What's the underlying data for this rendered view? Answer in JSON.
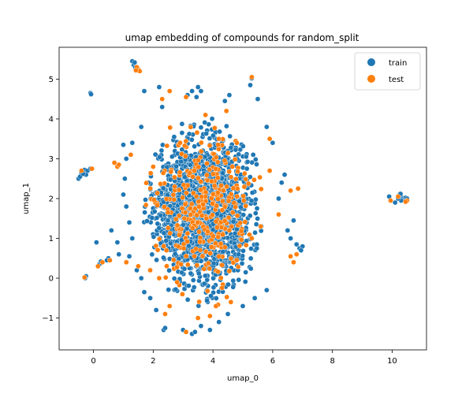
{
  "chart_data": {
    "type": "scatter",
    "title": "umap embedding of compounds for random_split",
    "xlabel": "umap_0",
    "ylabel": "umap_1",
    "xlim": [
      -1.15,
      11.15
    ],
    "ylim": [
      -1.8,
      5.8
    ],
    "xticks": [
      0,
      2,
      4,
      6,
      8,
      10
    ],
    "yticks": [
      -1,
      0,
      1,
      2,
      3,
      4,
      5
    ],
    "grid": false,
    "legend": {
      "placement": "top-right",
      "title": ""
    },
    "series": [
      {
        "name": "train",
        "color": "#1f77b4",
        "points": [
          [
            1.3,
            5.45
          ],
          [
            1.35,
            5.35
          ],
          [
            1.4,
            5.3
          ],
          [
            1.45,
            5.25
          ],
          [
            1.38,
            5.42
          ],
          [
            -0.1,
            4.65
          ],
          [
            -0.08,
            4.62
          ],
          [
            -0.5,
            2.5
          ],
          [
            -0.45,
            2.55
          ],
          [
            -0.4,
            2.65
          ],
          [
            -0.3,
            2.72
          ],
          [
            -0.2,
            2.7
          ],
          [
            -0.1,
            2.75
          ],
          [
            -0.25,
            2.6
          ],
          [
            -0.35,
            2.62
          ],
          [
            -0.25,
            0.05
          ],
          [
            -0.28,
            0.0
          ],
          [
            0.1,
            0.9
          ],
          [
            0.2,
            0.35
          ],
          [
            0.25,
            0.42
          ],
          [
            0.5,
            0.5
          ],
          [
            0.45,
            0.45
          ],
          [
            9.9,
            2.05
          ],
          [
            10.1,
            1.9
          ],
          [
            10.25,
            2.1
          ],
          [
            10.3,
            2.05
          ],
          [
            10.35,
            2.0
          ],
          [
            10.4,
            1.98
          ],
          [
            10.45,
            2.02
          ],
          [
            10.3,
            1.95
          ],
          [
            10.2,
            2.0
          ],
          [
            10.5,
            2.0
          ],
          [
            10.28,
            2.12
          ],
          [
            5.3,
            5.02
          ],
          [
            5.25,
            4.85
          ],
          [
            4.55,
            4.6
          ],
          [
            4.4,
            4.45
          ],
          [
            2.2,
            4.8
          ],
          [
            3.15,
            4.6
          ],
          [
            3.3,
            4.7
          ],
          [
            3.5,
            4.8
          ],
          [
            3.6,
            4.7
          ],
          [
            3.45,
            4.55
          ],
          [
            1.7,
            4.7
          ],
          [
            2.3,
            4.3
          ],
          [
            5.5,
            4.5
          ],
          [
            6.9,
            0.75
          ],
          [
            7.0,
            0.8
          ],
          [
            6.95,
            0.7
          ],
          [
            6.8,
            0.85
          ],
          [
            6.6,
            1.0
          ],
          [
            6.5,
            1.2
          ],
          [
            6.7,
            1.45
          ],
          [
            6.2,
            2.0
          ],
          [
            6.3,
            2.4
          ],
          [
            6.4,
            2.6
          ],
          [
            6.0,
            3.4
          ],
          [
            5.8,
            3.8
          ],
          [
            2.35,
            -1.3
          ],
          [
            2.4,
            -1.25
          ],
          [
            3.0,
            -1.3
          ],
          [
            3.3,
            -1.4
          ],
          [
            3.4,
            -1.35
          ],
          [
            3.6,
            -1.2
          ],
          [
            3.9,
            -1.3
          ],
          [
            4.2,
            -1.1
          ],
          [
            4.5,
            -0.9
          ],
          [
            5.0,
            -0.7
          ],
          [
            5.4,
            -0.5
          ],
          [
            5.8,
            -0.3
          ],
          [
            1.3,
            1.0
          ],
          [
            1.2,
            1.4
          ],
          [
            1.1,
            1.8
          ],
          [
            1.0,
            2.1
          ],
          [
            1.05,
            2.5
          ],
          [
            1.1,
            3.0
          ],
          [
            1.3,
            3.4
          ],
          [
            1.0,
            3.35
          ],
          [
            1.6,
            3.8
          ],
          [
            1.45,
            0.2
          ],
          [
            1.6,
            0.0
          ],
          [
            1.7,
            -0.35
          ],
          [
            1.9,
            -0.5
          ],
          [
            2.1,
            -0.8
          ],
          [
            0.6,
            1.2
          ],
          [
            0.8,
            0.9
          ],
          [
            0.85,
            0.6
          ],
          [
            1.2,
            0.55
          ]
        ],
        "cluster": {
          "center": [
            3.7,
            1.7
          ],
          "spread": [
            1.35,
            1.45
          ],
          "count": 1700
        }
      },
      {
        "name": "test",
        "color": "#ff7f0e",
        "points": [
          [
            1.5,
            5.25
          ],
          [
            1.55,
            5.2
          ],
          [
            1.45,
            5.3
          ],
          [
            1.42,
            5.22
          ],
          [
            -0.4,
            2.7
          ],
          [
            -0.05,
            2.75
          ],
          [
            -0.3,
            0.02
          ],
          [
            0.15,
            0.3
          ],
          [
            0.3,
            0.4
          ],
          [
            0.55,
            0.45
          ],
          [
            9.95,
            1.95
          ],
          [
            10.2,
            2.05
          ],
          [
            10.5,
            1.95
          ],
          [
            10.45,
            1.92
          ],
          [
            5.3,
            5.05
          ],
          [
            2.3,
            4.5
          ],
          [
            2.55,
            4.7
          ],
          [
            3.1,
            4.55
          ],
          [
            3.75,
            4.1
          ],
          [
            4.45,
            4.2
          ],
          [
            5.9,
            3.5
          ],
          [
            0.7,
            2.9
          ],
          [
            0.8,
            2.8
          ],
          [
            0.85,
            2.85
          ],
          [
            1.25,
            3.1
          ],
          [
            6.6,
            2.2
          ],
          [
            6.85,
            2.25
          ],
          [
            6.6,
            0.55
          ],
          [
            6.7,
            0.4
          ],
          [
            6.8,
            0.6
          ],
          [
            2.4,
            -0.9
          ],
          [
            2.55,
            -0.7
          ],
          [
            3.1,
            -1.35
          ],
          [
            3.5,
            -1.0
          ],
          [
            3.9,
            -0.95
          ],
          [
            4.1,
            -0.7
          ],
          [
            4.6,
            -0.6
          ],
          [
            1.1,
            0.4
          ],
          [
            1.5,
            0.3
          ],
          [
            1.9,
            0.2
          ],
          [
            2.2,
            0.0
          ],
          [
            2.8,
            -0.1
          ],
          [
            5.3,
            1.0
          ],
          [
            5.6,
            1.3
          ],
          [
            6.2,
            1.6
          ],
          [
            5.9,
            2.7
          ],
          [
            4.8,
            3.4
          ],
          [
            4.2,
            3.5
          ],
          [
            2.9,
            3.4
          ],
          [
            2.0,
            2.8
          ]
        ],
        "cluster": {
          "center": [
            3.7,
            1.7
          ],
          "spread": [
            1.35,
            1.45
          ],
          "count": 320
        }
      }
    ]
  }
}
